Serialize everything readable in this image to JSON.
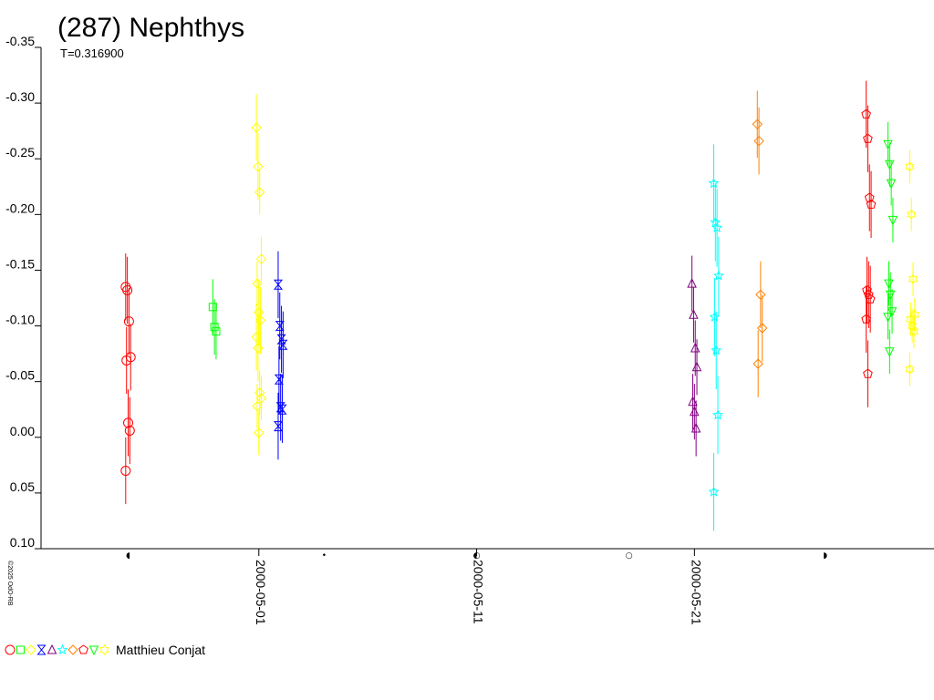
{
  "chart_data": {
    "type": "scatter",
    "title": "(287) Nephthys",
    "subtitle": "T=0.316900",
    "ylim": [
      0.1,
      -0.35
    ],
    "y_ticks": [
      {
        "value": -0.35,
        "label": "-0.35"
      },
      {
        "value": -0.3,
        "label": "-0.30"
      },
      {
        "value": -0.25,
        "label": "-0.25"
      },
      {
        "value": -0.2,
        "label": "-0.20"
      },
      {
        "value": -0.15,
        "label": "-0.15"
      },
      {
        "value": -0.1,
        "label": "-0.10"
      },
      {
        "value": -0.05,
        "label": "-0.05"
      },
      {
        "value": 0.0,
        "label": "0.00"
      },
      {
        "value": 0.05,
        "label": "0.05"
      },
      {
        "value": 0.1,
        "label": "0.10"
      }
    ],
    "x_ticks": [
      {
        "x": "2000-05-01",
        "label": "2000-05-01"
      },
      {
        "x": "2000-05-11",
        "label": "2000-05-11"
      },
      {
        "x": "2000-05-21",
        "label": "2000-05-21"
      }
    ],
    "x_range": [
      "2000-04-21",
      "2000-06-01"
    ],
    "phase_markers": [
      {
        "x": "2000-04-25",
        "glyph": "◖"
      },
      {
        "x": "2000-05-04",
        "glyph": "•"
      },
      {
        "x": "2000-05-11",
        "glyph": "◐"
      },
      {
        "x": "2000-05-18",
        "glyph": "○"
      },
      {
        "x": "2000-05-27",
        "glyph": "◗"
      }
    ],
    "grid": false,
    "legend": {
      "placement": "bottom-left",
      "observer": "Matthieu Conjat",
      "symbols": [
        {
          "shape": "circle",
          "color": "#ff0000"
        },
        {
          "shape": "square",
          "color": "#00ff00"
        },
        {
          "shape": "diamond",
          "color": "#ffff00"
        },
        {
          "shape": "hourglass",
          "color": "#0000ff"
        },
        {
          "shape": "triangle",
          "color": "#800080"
        },
        {
          "shape": "star",
          "color": "#00ffff"
        },
        {
          "shape": "diamond",
          "color": "#ff8000"
        },
        {
          "shape": "pentagon",
          "color": "#ff0000"
        },
        {
          "shape": "triangle-down",
          "color": "#00ff00"
        },
        {
          "shape": "hexagram",
          "color": "#ffff00"
        }
      ]
    },
    "credit": "©2025 OdO-RB",
    "series": [
      {
        "shape": "circle",
        "color": "#ff0000",
        "points": [
          {
            "x": "2000-04-25",
            "y": -0.135,
            "err": 0.03
          },
          {
            "x": "2000-04-25",
            "y": -0.132,
            "err": 0.03
          },
          {
            "x": "2000-04-25",
            "y": -0.104,
            "err": 0.03
          },
          {
            "x": "2000-04-25",
            "y": -0.072,
            "err": 0.03
          },
          {
            "x": "2000-04-25",
            "y": -0.069,
            "err": 0.03
          },
          {
            "x": "2000-04-25",
            "y": -0.013,
            "err": 0.03
          },
          {
            "x": "2000-04-25",
            "y": -0.006,
            "err": 0.03
          },
          {
            "x": "2000-04-25",
            "y": 0.03,
            "err": 0.03
          }
        ]
      },
      {
        "shape": "square",
        "color": "#00ff00",
        "points": [
          {
            "x": "2000-04-29",
            "y": -0.117,
            "err": 0.025
          },
          {
            "x": "2000-04-29",
            "y": -0.099,
            "err": 0.025
          },
          {
            "x": "2000-04-29",
            "y": -0.095,
            "err": 0.025
          }
        ]
      },
      {
        "shape": "diamond",
        "color": "#ffff00",
        "points": [
          {
            "x": "2000-05-01",
            "y": -0.278,
            "err": 0.03
          },
          {
            "x": "2000-05-01",
            "y": -0.243,
            "err": 0.03
          },
          {
            "x": "2000-05-01",
            "y": -0.22,
            "err": 0.02
          },
          {
            "x": "2000-05-01",
            "y": -0.16,
            "err": 0.02
          },
          {
            "x": "2000-05-01",
            "y": -0.138,
            "err": 0.02
          },
          {
            "x": "2000-05-01",
            "y": -0.112,
            "err": 0.03
          },
          {
            "x": "2000-05-01",
            "y": -0.105,
            "err": 0.03
          },
          {
            "x": "2000-05-01",
            "y": -0.09,
            "err": 0.03
          },
          {
            "x": "2000-05-01",
            "y": -0.08,
            "err": 0.03
          },
          {
            "x": "2000-05-01",
            "y": -0.04,
            "err": 0.02
          },
          {
            "x": "2000-05-01",
            "y": -0.035,
            "err": 0.02
          },
          {
            "x": "2000-05-01",
            "y": -0.028,
            "err": 0.02
          },
          {
            "x": "2000-05-01",
            "y": -0.004,
            "err": 0.02
          }
        ]
      },
      {
        "shape": "hourglass",
        "color": "#0000ff",
        "points": [
          {
            "x": "2000-05-02",
            "y": -0.137,
            "err": 0.03
          },
          {
            "x": "2000-05-02",
            "y": -0.1,
            "err": 0.03
          },
          {
            "x": "2000-05-02",
            "y": -0.088,
            "err": 0.03
          },
          {
            "x": "2000-05-02",
            "y": -0.083,
            "err": 0.03
          },
          {
            "x": "2000-05-02",
            "y": -0.052,
            "err": 0.03
          },
          {
            "x": "2000-05-02",
            "y": -0.027,
            "err": 0.03
          },
          {
            "x": "2000-05-02",
            "y": -0.025,
            "err": 0.03
          },
          {
            "x": "2000-05-02",
            "y": -0.01,
            "err": 0.03
          }
        ]
      },
      {
        "shape": "triangle",
        "color": "#800080",
        "points": [
          {
            "x": "2000-05-21",
            "y": -0.138,
            "err": 0.025
          },
          {
            "x": "2000-05-21",
            "y": -0.11,
            "err": 0.025
          },
          {
            "x": "2000-05-21",
            "y": -0.08,
            "err": 0.025
          },
          {
            "x": "2000-05-21",
            "y": -0.063,
            "err": 0.025
          },
          {
            "x": "2000-05-21",
            "y": -0.032,
            "err": 0.025
          },
          {
            "x": "2000-05-21",
            "y": -0.023,
            "err": 0.025
          },
          {
            "x": "2000-05-21",
            "y": -0.008,
            "err": 0.025
          }
        ]
      },
      {
        "shape": "star",
        "color": "#00ffff",
        "points": [
          {
            "x": "2000-05-22",
            "y": -0.228,
            "err": 0.035
          },
          {
            "x": "2000-05-22",
            "y": -0.193,
            "err": 0.035
          },
          {
            "x": "2000-05-22",
            "y": -0.188,
            "err": 0.035
          },
          {
            "x": "2000-05-22",
            "y": -0.145,
            "err": 0.035
          },
          {
            "x": "2000-05-22",
            "y": -0.108,
            "err": 0.035
          },
          {
            "x": "2000-05-22",
            "y": -0.078,
            "err": 0.035
          },
          {
            "x": "2000-05-22",
            "y": -0.02,
            "err": 0.035
          },
          {
            "x": "2000-05-22",
            "y": 0.049,
            "err": 0.035
          }
        ]
      },
      {
        "shape": "diamond",
        "color": "#ff8000",
        "points": [
          {
            "x": "2000-05-24",
            "y": -0.281,
            "err": 0.03
          },
          {
            "x": "2000-05-24",
            "y": -0.266,
            "err": 0.03
          },
          {
            "x": "2000-05-24",
            "y": -0.128,
            "err": 0.03
          },
          {
            "x": "2000-05-24",
            "y": -0.098,
            "err": 0.03
          },
          {
            "x": "2000-05-24",
            "y": -0.066,
            "err": 0.03
          }
        ]
      },
      {
        "shape": "pentagon",
        "color": "#ff0000",
        "points": [
          {
            "x": "2000-05-29",
            "y": -0.29,
            "err": 0.03
          },
          {
            "x": "2000-05-29",
            "y": -0.268,
            "err": 0.03
          },
          {
            "x": "2000-05-29",
            "y": -0.215,
            "err": 0.03
          },
          {
            "x": "2000-05-29",
            "y": -0.209,
            "err": 0.03
          },
          {
            "x": "2000-05-29",
            "y": -0.132,
            "err": 0.03
          },
          {
            "x": "2000-05-29",
            "y": -0.128,
            "err": 0.03
          },
          {
            "x": "2000-05-29",
            "y": -0.124,
            "err": 0.03
          },
          {
            "x": "2000-05-29",
            "y": -0.106,
            "err": 0.03
          },
          {
            "x": "2000-05-29",
            "y": -0.057,
            "err": 0.03
          }
        ]
      },
      {
        "shape": "triangle-down",
        "color": "#00ff00",
        "points": [
          {
            "x": "2000-05-30",
            "y": -0.263,
            "err": 0.02
          },
          {
            "x": "2000-05-30",
            "y": -0.245,
            "err": 0.02
          },
          {
            "x": "2000-05-30",
            "y": -0.228,
            "err": 0.02
          },
          {
            "x": "2000-05-30",
            "y": -0.195,
            "err": 0.02
          },
          {
            "x": "2000-05-30",
            "y": -0.138,
            "err": 0.02
          },
          {
            "x": "2000-05-30",
            "y": -0.128,
            "err": 0.02
          },
          {
            "x": "2000-05-30",
            "y": -0.113,
            "err": 0.02
          },
          {
            "x": "2000-05-30",
            "y": -0.108,
            "err": 0.02
          },
          {
            "x": "2000-05-30",
            "y": -0.077,
            "err": 0.02
          }
        ]
      },
      {
        "shape": "hexagram",
        "color": "#ffff00",
        "points": [
          {
            "x": "2000-05-31",
            "y": -0.243,
            "err": 0.015
          },
          {
            "x": "2000-05-31",
            "y": -0.2,
            "err": 0.015
          },
          {
            "x": "2000-05-31",
            "y": -0.142,
            "err": 0.015
          },
          {
            "x": "2000-05-31",
            "y": -0.11,
            "err": 0.015
          },
          {
            "x": "2000-05-31",
            "y": -0.106,
            "err": 0.015
          },
          {
            "x": "2000-05-31",
            "y": -0.1,
            "err": 0.015
          },
          {
            "x": "2000-05-31",
            "y": -0.095,
            "err": 0.015
          },
          {
            "x": "2000-05-31",
            "y": -0.061,
            "err": 0.015
          }
        ]
      }
    ]
  }
}
